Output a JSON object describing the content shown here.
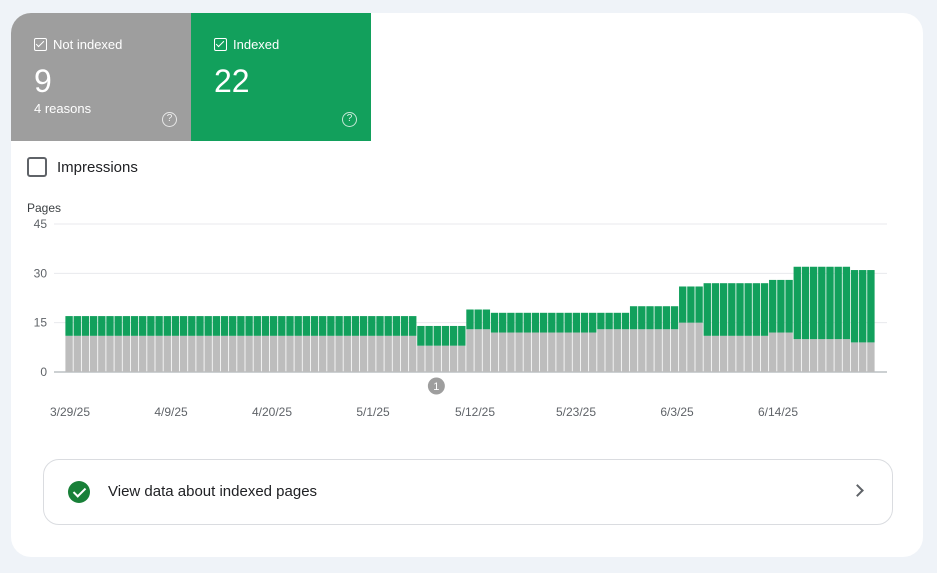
{
  "tiles": {
    "not_indexed": {
      "label": "Not indexed",
      "value": "9",
      "sub": "4 reasons",
      "color": "#9e9e9e",
      "checked": true
    },
    "indexed": {
      "label": "Indexed",
      "value": "22",
      "color": "#12a05c",
      "checked": true
    }
  },
  "impressions": {
    "label": "Impressions",
    "checked": false
  },
  "annotation_marker": "1",
  "view_link": {
    "label": "View data about indexed pages"
  },
  "icons": {
    "help": "help-circle-icon",
    "check": "check-circle-icon",
    "chevron": "chevron-right-icon"
  },
  "chart_data": {
    "type": "bar",
    "stacked": true,
    "ylabel": "Pages",
    "ylim": [
      0,
      45
    ],
    "yticks": [
      "45",
      "30",
      "15",
      "0"
    ],
    "xtick_labels": [
      "3/29/25",
      "4/9/25",
      "4/20/25",
      "5/1/25",
      "5/12/25",
      "5/23/25",
      "6/3/25",
      "6/14/25"
    ],
    "grid": true,
    "series": [
      {
        "name": "Not indexed",
        "color": "#bdbdbd",
        "values": [
          11,
          11,
          11,
          11,
          11,
          11,
          11,
          11,
          11,
          11,
          11,
          11,
          11,
          11,
          11,
          11,
          11,
          11,
          11,
          11,
          11,
          11,
          11,
          11,
          11,
          11,
          11,
          11,
          11,
          11,
          11,
          11,
          11,
          11,
          11,
          11,
          11,
          11,
          11,
          11,
          11,
          11,
          11,
          8,
          8,
          8,
          8,
          8,
          8,
          13,
          13,
          13,
          12,
          12,
          12,
          12,
          12,
          12,
          12,
          12,
          12,
          12,
          12,
          12,
          12,
          13,
          13,
          13,
          13,
          13,
          13,
          13,
          13,
          13,
          13,
          15,
          15,
          15,
          11,
          11,
          11,
          11,
          11,
          11,
          11,
          11,
          12,
          12,
          12,
          10,
          10,
          10,
          10,
          10,
          10,
          10,
          9,
          9,
          9
        ]
      },
      {
        "name": "Indexed",
        "color": "#12a05c",
        "values": [
          6,
          6,
          6,
          6,
          6,
          6,
          6,
          6,
          6,
          6,
          6,
          6,
          6,
          6,
          6,
          6,
          6,
          6,
          6,
          6,
          6,
          6,
          6,
          6,
          6,
          6,
          6,
          6,
          6,
          6,
          6,
          6,
          6,
          6,
          6,
          6,
          6,
          6,
          6,
          6,
          6,
          6,
          6,
          6,
          6,
          6,
          6,
          6,
          6,
          6,
          6,
          6,
          6,
          6,
          6,
          6,
          6,
          6,
          6,
          6,
          6,
          6,
          6,
          6,
          6,
          5,
          5,
          5,
          5,
          7,
          7,
          7,
          7,
          7,
          7,
          11,
          11,
          11,
          16,
          16,
          16,
          16,
          16,
          16,
          16,
          16,
          16,
          16,
          16,
          22,
          22,
          22,
          22,
          22,
          22,
          22,
          22,
          22,
          22
        ]
      }
    ],
    "annotation": {
      "label": "1",
      "at_index": 46
    }
  }
}
